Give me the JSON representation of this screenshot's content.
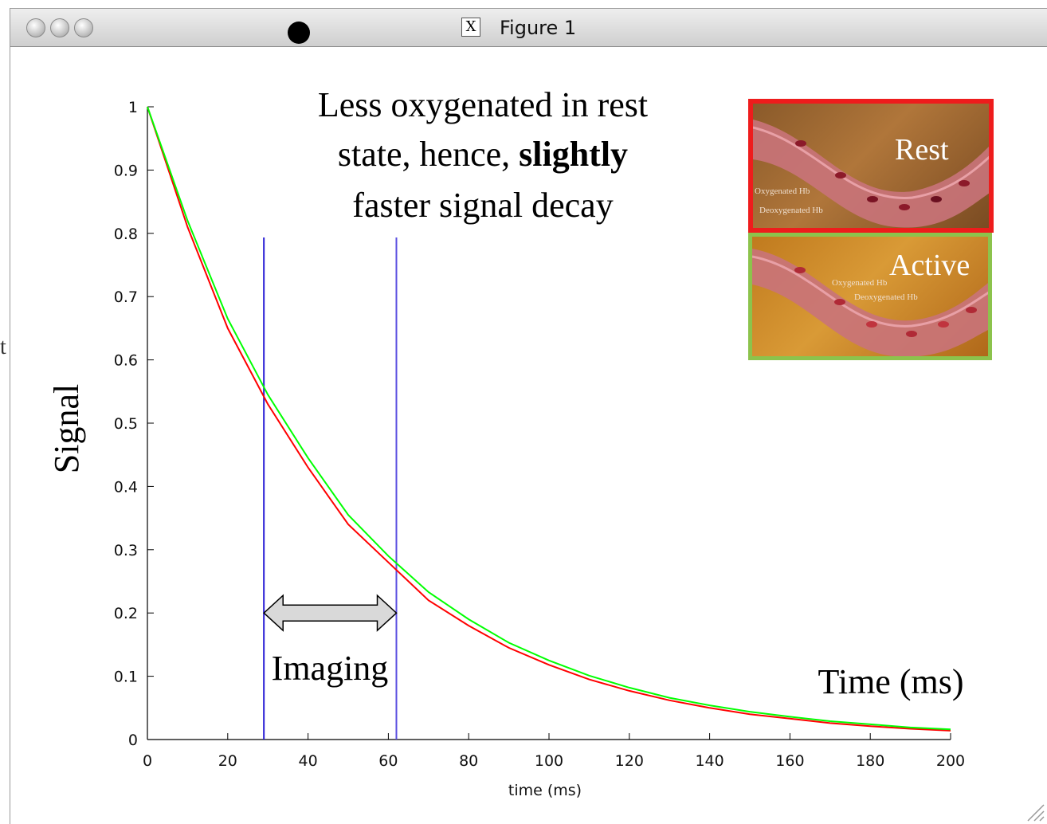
{
  "window": {
    "title": "Figure 1",
    "edge_text": "t"
  },
  "annotations": {
    "headline_line1": "Less oxygenated in rest",
    "headline_line2_pre": "state, hence, ",
    "headline_line2_bold": "slightly",
    "headline_line3": "faster signal decay",
    "imaging": "Imaging",
    "time_label": "Time (ms)",
    "signal_label": "Signal"
  },
  "insets": {
    "rest": {
      "title": "Rest",
      "label1": "Oxygenated Hb",
      "label2": "Deoxygenated Hb",
      "border_color": "#ee1c1c"
    },
    "active": {
      "title": "Active",
      "label1": "Oxygenated Hb",
      "label2": "Deoxygenated Hb",
      "border_color": "#8cc34c"
    }
  },
  "chart_data": {
    "type": "line",
    "title": "",
    "xlabel": "time (ms)",
    "ylabel": "Signal",
    "xlim": [
      0,
      200
    ],
    "ylim": [
      0,
      1
    ],
    "x_ticks": [
      0,
      20,
      40,
      60,
      80,
      100,
      120,
      140,
      160,
      180,
      200
    ],
    "y_ticks": [
      0,
      0.1,
      0.2,
      0.3,
      0.4,
      0.5,
      0.6,
      0.7,
      0.8,
      0.9,
      1
    ],
    "y_tick_labels": [
      "0",
      "0.1",
      "0.2",
      "0.3",
      "0.4",
      "0.5",
      "0.6",
      "0.7",
      "0.8",
      "0.9",
      "1"
    ],
    "series": [
      {
        "color": "#ff0000",
        "x": [
          0,
          10,
          20,
          30,
          40,
          50,
          60,
          70,
          80,
          90,
          100,
          110,
          120,
          130,
          140,
          150,
          160,
          170,
          180,
          190,
          200
        ],
        "values": [
          1.0,
          0.81,
          0.65,
          0.53,
          0.43,
          0.34,
          0.28,
          0.22,
          0.18,
          0.145,
          0.118,
          0.095,
          0.077,
          0.062,
          0.05,
          0.04,
          0.033,
          0.026,
          0.021,
          0.017,
          0.014
        ]
      },
      {
        "color": "#00ff00",
        "x": [
          0,
          10,
          20,
          30,
          40,
          50,
          60,
          70,
          80,
          90,
          100,
          110,
          120,
          130,
          140,
          150,
          160,
          170,
          180,
          190,
          200
        ],
        "values": [
          1.0,
          0.82,
          0.665,
          0.545,
          0.445,
          0.355,
          0.29,
          0.233,
          0.19,
          0.153,
          0.125,
          0.101,
          0.082,
          0.066,
          0.054,
          0.044,
          0.036,
          0.029,
          0.024,
          0.019,
          0.016
        ]
      }
    ],
    "vlines": [
      {
        "x": 29,
        "color": "#2a1fd6"
      },
      {
        "x": 62,
        "color": "#5a4fe0"
      }
    ],
    "imaging_arrow": {
      "x_start": 29,
      "x_end": 62,
      "y": 0.2
    }
  }
}
